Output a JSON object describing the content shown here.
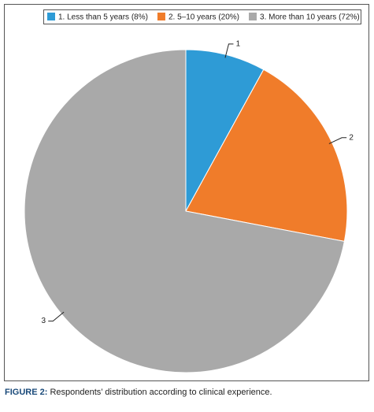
{
  "chart_data": {
    "type": "pie",
    "categories": [
      "1. Less than 5 years (8%)",
      "2. 5–10 years (20%)",
      "3. More than 10 years (72%)"
    ],
    "values": [
      8,
      20,
      72
    ],
    "colors": [
      "#2e9bd6",
      "#f07c2a",
      "#a9a9a9"
    ],
    "slice_labels": [
      "1",
      "2",
      "3"
    ],
    "legend": "top"
  },
  "caption": {
    "label": "FIGURE 2:",
    "text": "Respondents’ distribution according to clinical experience."
  }
}
